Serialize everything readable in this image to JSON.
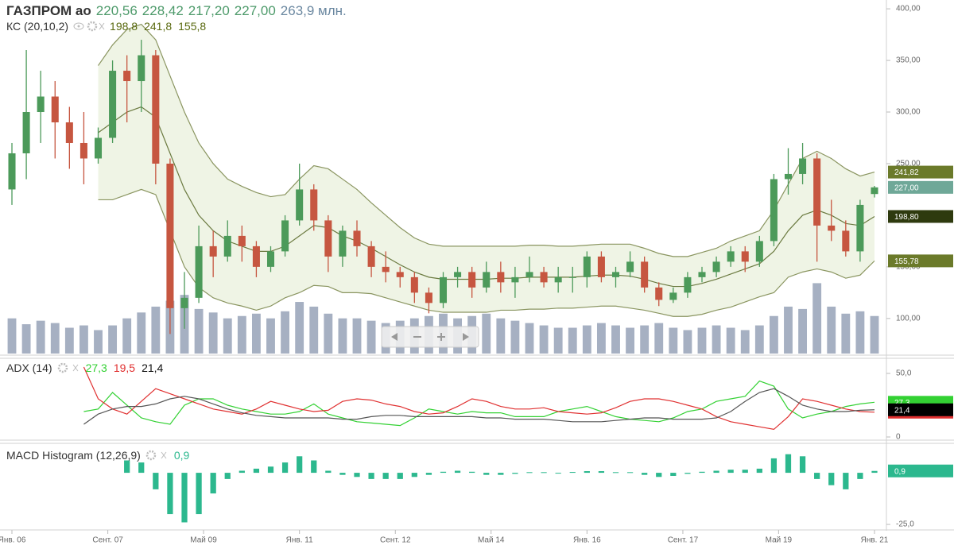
{
  "chart_data": [
    {
      "type": "candlestick",
      "title": "ГАЗПРОМ ао",
      "header_values": [
        "220,56",
        "228,42",
        "217,20",
        "227,00"
      ],
      "header_volume": "263,9 млн.",
      "up_color": "#4c9a5a",
      "down_color": "#c65640",
      "xlim": [
        -0.83,
        60.83
      ],
      "xticks": [
        {
          "value": 0,
          "label": "Янв. 06"
        },
        {
          "value": 6.67,
          "label": "Сент. 07"
        },
        {
          "value": 13.33,
          "label": "Май 09"
        },
        {
          "value": 20,
          "label": "Янв. 11"
        },
        {
          "value": 26.67,
          "label": "Сент. 12"
        },
        {
          "value": 33.33,
          "label": "Май 14"
        },
        {
          "value": 40,
          "label": "Янв. 16"
        },
        {
          "value": 46.67,
          "label": "Сент. 17"
        },
        {
          "value": 53.33,
          "label": "Май 19"
        },
        {
          "value": 60,
          "label": "Янв. 21"
        }
      ],
      "ylim": [
        66,
        407
      ],
      "yticks": [
        {
          "value": 100,
          "label": "100,00"
        },
        {
          "value": 150,
          "label": "150,00"
        },
        {
          "value": 250,
          "label": "250,00"
        },
        {
          "value": 300,
          "label": "300,00"
        },
        {
          "value": 350,
          "label": "350,00"
        },
        {
          "value": 400,
          "label": "400,00"
        }
      ],
      "ohlc": [
        [
          225,
          270,
          210,
          260
        ],
        [
          260,
          360,
          235,
          300
        ],
        [
          300,
          340,
          270,
          315
        ],
        [
          315,
          330,
          255,
          290
        ],
        [
          290,
          305,
          245,
          270
        ],
        [
          270,
          300,
          230,
          255
        ],
        [
          255,
          285,
          250,
          275
        ],
        [
          275,
          350,
          270,
          340
        ],
        [
          340,
          355,
          290,
          330
        ],
        [
          330,
          370,
          300,
          355
        ],
        [
          355,
          360,
          230,
          250
        ],
        [
          250,
          255,
          85,
          110
        ],
        [
          110,
          145,
          90,
          120
        ],
        [
          120,
          190,
          115,
          170
        ],
        [
          170,
          185,
          140,
          160
        ],
        [
          160,
          195,
          155,
          180
        ],
        [
          180,
          190,
          155,
          170
        ],
        [
          170,
          175,
          140,
          150
        ],
        [
          150,
          170,
          145,
          165
        ],
        [
          165,
          200,
          160,
          195
        ],
        [
          195,
          250,
          190,
          225
        ],
        [
          225,
          230,
          185,
          195
        ],
        [
          195,
          200,
          145,
          160
        ],
        [
          160,
          190,
          150,
          185
        ],
        [
          185,
          195,
          160,
          170
        ],
        [
          170,
          175,
          140,
          150
        ],
        [
          150,
          165,
          135,
          145
        ],
        [
          145,
          150,
          130,
          140
        ],
        [
          140,
          145,
          115,
          125
        ],
        [
          125,
          130,
          105,
          115
        ],
        [
          115,
          145,
          110,
          140
        ],
        [
          140,
          150,
          130,
          145
        ],
        [
          145,
          150,
          120,
          130
        ],
        [
          130,
          155,
          125,
          145
        ],
        [
          145,
          155,
          125,
          135
        ],
        [
          135,
          150,
          120,
          140
        ],
        [
          140,
          160,
          135,
          145
        ],
        [
          145,
          150,
          130,
          135
        ],
        [
          135,
          150,
          125,
          140
        ],
        [
          140,
          150,
          125,
          140
        ],
        [
          140,
          165,
          130,
          160
        ],
        [
          160,
          165,
          135,
          140
        ],
        [
          140,
          150,
          130,
          145
        ],
        [
          145,
          165,
          140,
          155
        ],
        [
          155,
          160,
          125,
          130
        ],
        [
          130,
          135,
          112,
          118
        ],
        [
          118,
          130,
          115,
          125
        ],
        [
          125,
          145,
          120,
          140
        ],
        [
          140,
          150,
          135,
          145
        ],
        [
          145,
          160,
          140,
          155
        ],
        [
          155,
          170,
          150,
          165
        ],
        [
          165,
          170,
          145,
          155
        ],
        [
          155,
          180,
          150,
          175
        ],
        [
          175,
          240,
          170,
          235
        ],
        [
          235,
          265,
          220,
          240
        ],
        [
          240,
          270,
          230,
          255
        ],
        [
          255,
          260,
          155,
          190
        ],
        [
          190,
          215,
          175,
          185
        ],
        [
          185,
          195,
          160,
          165
        ],
        [
          165,
          215,
          155,
          210
        ],
        [
          220.56,
          228.42,
          217.2,
          227
        ]
      ],
      "volume": {
        "color": "#a6b0c2",
        "ylim": [
          0,
          300
        ],
        "values": [
          30,
          25,
          28,
          26,
          22,
          24,
          20,
          24,
          30,
          35,
          40,
          45,
          50,
          38,
          35,
          30,
          32,
          34,
          30,
          36,
          44,
          40,
          34,
          30,
          30,
          28,
          26,
          28,
          30,
          32,
          34,
          30,
          32,
          34,
          30,
          28,
          26,
          24,
          22,
          22,
          24,
          26,
          24,
          22,
          24,
          26,
          22,
          20,
          22,
          24,
          22,
          20,
          24,
          32,
          40,
          38,
          60,
          40,
          34,
          36,
          32
        ]
      },
      "overlay": {
        "name": "КС (20,10,2)",
        "legend_values": [
          "198,8",
          "241,8",
          "155,8"
        ],
        "legend_color": "#5a6a10",
        "fill": "rgba(190,210,150,0.25)",
        "lines": [
          {
            "color": "#8a9560",
            "values": [
              null,
              null,
              null,
              null,
              null,
              null,
              345,
              365,
              380,
              385,
              370,
              335,
              300,
              270,
              250,
              235,
              228,
              222,
              218,
              220,
              235,
              248,
              245,
              235,
              225,
              212,
              200,
              188,
              178,
              172,
              170,
              170,
              170,
              170,
              170,
              170,
              171,
              171,
              170,
              170,
              171,
              172,
              172,
              172,
              168,
              163,
              160,
              160,
              164,
              168,
              175,
              180,
              185,
              205,
              230,
              255,
              262,
              255,
              245,
              238,
              241.82
            ]
          },
          {
            "color": "#6b7a40",
            "values": [
              null,
              null,
              null,
              null,
              null,
              null,
              280,
              290,
              300,
              305,
              295,
              260,
              225,
              200,
              185,
              175,
              170,
              165,
              165,
              170,
              180,
              190,
              188,
              180,
              175,
              168,
              160,
              152,
              145,
              140,
              138,
              138,
              138,
              138,
              139,
              139,
              140,
              140,
              140,
              140,
              141,
              142,
              142,
              141,
              138,
              134,
              131,
              131,
              134,
              138,
              143,
              148,
              153,
              165,
              185,
              200,
              205,
              200,
              192,
              190,
              198.8
            ]
          },
          {
            "color": "#8a9560",
            "values": [
              null,
              null,
              null,
              null,
              null,
              null,
              215,
              215,
              220,
              225,
              220,
              185,
              150,
              130,
              120,
              115,
              112,
              108,
              112,
              120,
              125,
              132,
              131,
              125,
              125,
              124,
              120,
              116,
              112,
              108,
              106,
              106,
              106,
              106,
              108,
              108,
              109,
              109,
              110,
              110,
              111,
              112,
              112,
              110,
              108,
              105,
              102,
              102,
              104,
              108,
              111,
              116,
              121,
              125,
              140,
              145,
              148,
              145,
              139,
              142,
              155.78
            ]
          }
        ]
      },
      "tags": [
        {
          "value": 241.82,
          "label": "241,82",
          "color": "#6b7a2a"
        },
        {
          "value": 227,
          "label": "227,00",
          "color": "#6fa898"
        },
        {
          "value": 198.8,
          "label": "198,80",
          "color": "#2e3a0e"
        },
        {
          "value": 155.78,
          "label": "155,78",
          "color": "#6b7a2a"
        }
      ]
    },
    {
      "type": "line",
      "title": "ADX (14)",
      "ylim": [
        -1.25,
        61.25
      ],
      "yticks": [
        0,
        {
          "value": 50,
          "label": "50,0"
        }
      ],
      "series": [
        {
          "color": "#33d133",
          "value_label": "27,3",
          "values": [
            null,
            null,
            null,
            null,
            null,
            20,
            22,
            35,
            25,
            15,
            12,
            10,
            25,
            30,
            30,
            25,
            22,
            20,
            18,
            18,
            20,
            26,
            18,
            15,
            12,
            11,
            10,
            9,
            15,
            22,
            20,
            18,
            20,
            19,
            19,
            16,
            16,
            16,
            20,
            22,
            24,
            20,
            16,
            14,
            13,
            12,
            15,
            20,
            22,
            28,
            30,
            32,
            44,
            40,
            22,
            15,
            18,
            20,
            24,
            26,
            27.3
          ]
        },
        {
          "color": "#e03030",
          "value_label": "19,5",
          "values": [
            null,
            null,
            null,
            null,
            null,
            55,
            30,
            22,
            18,
            28,
            38,
            34,
            30,
            26,
            22,
            20,
            18,
            22,
            28,
            25,
            22,
            20,
            21,
            28,
            30,
            29,
            26,
            24,
            20,
            18,
            19,
            24,
            30,
            28,
            24,
            22,
            22,
            23,
            20,
            19,
            18,
            19,
            23,
            28,
            30,
            30,
            28,
            25,
            22,
            16,
            12,
            10,
            8,
            6,
            16,
            30,
            28,
            25,
            22,
            20,
            19.5
          ]
        },
        {
          "color": "#555555",
          "value_label": "21,4",
          "values": [
            null,
            null,
            null,
            null,
            null,
            10,
            18,
            22,
            24,
            24,
            26,
            30,
            32,
            30,
            26,
            22,
            19,
            17,
            16,
            15,
            15,
            15,
            15,
            14,
            14,
            16,
            17,
            17,
            16,
            16,
            16,
            16,
            16,
            15,
            15,
            14,
            14,
            14,
            13,
            12,
            12,
            12,
            13,
            14,
            15,
            15,
            14,
            14,
            14,
            15,
            20,
            28,
            35,
            38,
            32,
            25,
            22,
            20,
            20,
            21,
            21.4
          ]
        }
      ],
      "tags": [
        {
          "value": 27.3,
          "label": "27,3",
          "color": "#33d133"
        },
        {
          "value": 19.5,
          "label": "19,5",
          "color": "#e03030"
        },
        {
          "value": 21.4,
          "label": "21,4",
          "color": "#000000"
        }
      ]
    },
    {
      "type": "bar",
      "title": "MACD Histogram (12,26,9)",
      "value_label": "0,9",
      "color": "#2cb88e",
      "ylim": [
        -26.9,
        13.5
      ],
      "yticks": [
        {
          "value": -25,
          "label": "-25,0"
        }
      ],
      "values": [
        null,
        null,
        null,
        null,
        null,
        null,
        null,
        null,
        6,
        5,
        -8,
        -20,
        -24,
        -20,
        -10,
        -3,
        1,
        2,
        3,
        5,
        8,
        6,
        1,
        -1,
        -2,
        -3,
        -3,
        -3,
        -2,
        -1,
        0.5,
        1,
        0.5,
        -1,
        -1,
        -0.5,
        0.3,
        0.3,
        -0.3,
        0.4,
        0.8,
        0.8,
        0.3,
        0.3,
        -1,
        -2,
        -1.5,
        -0.5,
        0.5,
        1,
        1.5,
        1.5,
        2,
        7,
        9,
        8,
        -3,
        -6,
        -8,
        -3,
        0.9
      ],
      "tags": [
        {
          "value": 0.9,
          "label": "0,9",
          "color": "#2cb88e"
        }
      ]
    }
  ]
}
